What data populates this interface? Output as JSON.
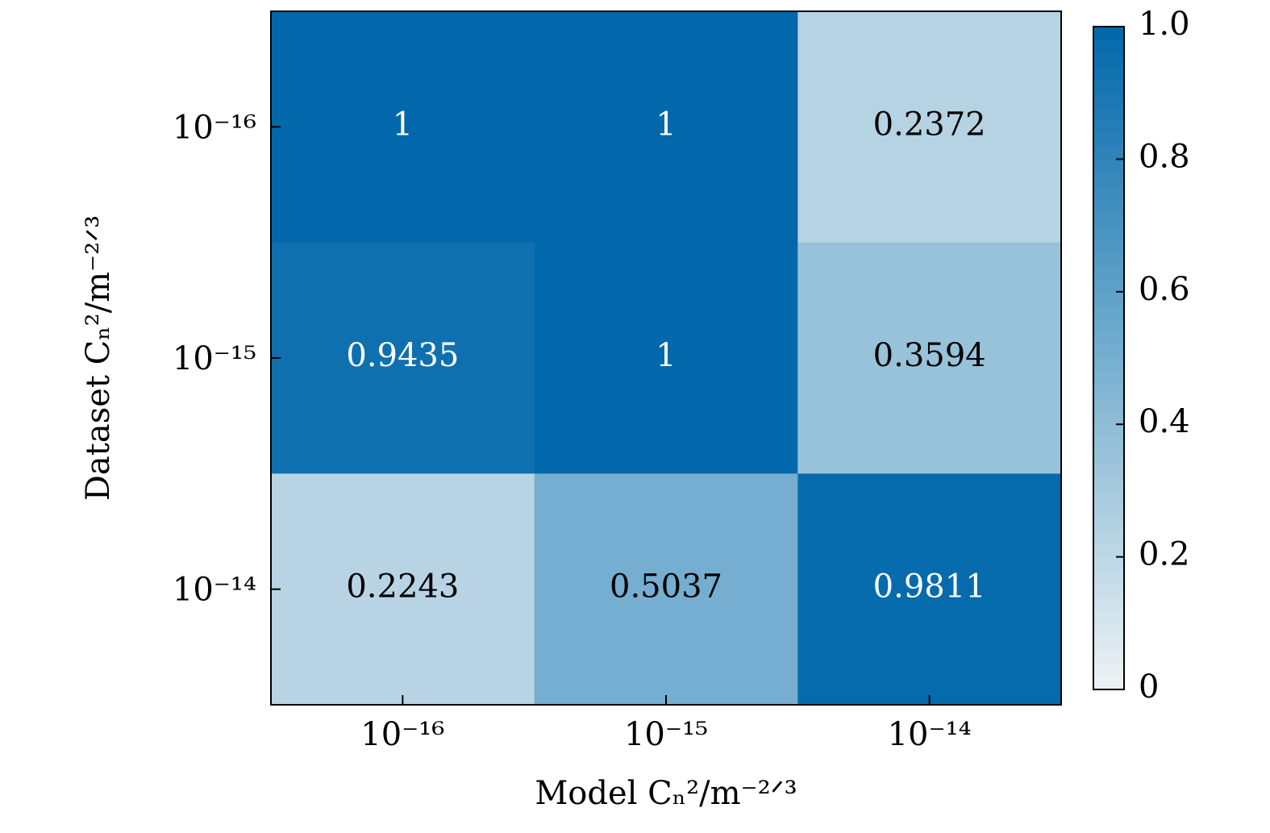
{
  "chart_data": {
    "type": "heatmap",
    "x_label": "Model Cₙ²/m⁻²ᐟ³",
    "y_label": "Dataset Cₙ²/m⁻²ᐟ³",
    "x_categories": [
      "10⁻¹⁶",
      "10⁻¹⁵",
      "10⁻¹⁴"
    ],
    "y_categories": [
      "10⁻¹⁶",
      "10⁻¹⁵",
      "10⁻¹⁴"
    ],
    "values": [
      [
        1,
        1,
        0.2372
      ],
      [
        0.9435,
        1,
        0.3594
      ],
      [
        0.2243,
        0.5037,
        0.9811
      ]
    ],
    "zlim": [
      0,
      1
    ],
    "zticks": [
      0,
      0.2,
      0.4,
      0.6,
      0.8,
      {
        "value": 1,
        "label": "1.0"
      }
    ],
    "colormap": [
      "#eef3f4",
      "#76afd0",
      "#0268ab"
    ]
  }
}
